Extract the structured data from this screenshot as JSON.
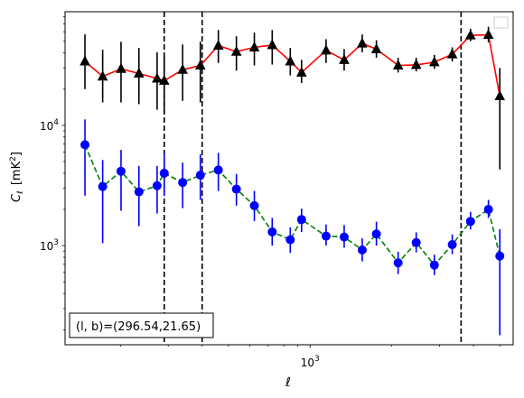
{
  "chart_data": {
    "type": "scatter",
    "xlabel": "ℓ",
    "ylabel_main": "C",
    "ylabel_sub": "ℓ",
    "ylabel_unit_pre": "[mK",
    "ylabel_unit_sup": "2",
    "ylabel_unit_post": "]",
    "xscale": "log",
    "yscale": "log",
    "xlim": [
      125,
      5600
    ],
    "ylim": [
      150,
      88000
    ],
    "xtick_labels": [
      {
        "value": 1000,
        "base": "10",
        "exp": "3"
      }
    ],
    "ytick_labels": [
      {
        "value": 1000,
        "base": "10",
        "exp": "3"
      },
      {
        "value": 10000,
        "base": "10",
        "exp": "4"
      }
    ],
    "grid": false,
    "legend": "top-right (empty)",
    "annotation": "(l, b)=(296.54,21.65)",
    "vlines": [
      290,
      400,
      3600
    ],
    "series": [
      {
        "line_color": "#ff0000",
        "line_style": "solid",
        "marker": "triangle",
        "marker_color": "#000000",
        "err_color": "#000000",
        "x": [
          148,
          172,
          201,
          234,
          273,
          290,
          339,
          394,
          459,
          535,
          623,
          725,
          845,
          930,
          1145,
          1335,
          1556,
          1755,
          2110,
          2460,
          2870,
          3340,
          3900,
          4540,
          5000
        ],
        "y": [
          34000,
          25500,
          29500,
          27000,
          24500,
          23500,
          29000,
          31500,
          46000,
          41000,
          44500,
          46500,
          34000,
          27500,
          42000,
          35000,
          48000,
          43000,
          31500,
          31800,
          33500,
          39000,
          56000,
          56500,
          17500
        ],
        "err_low": [
          14000,
          10000,
          14000,
          12000,
          11000,
          11000,
          13000,
          16000,
          13000,
          12500,
          13000,
          14500,
          8000,
          5000,
          9000,
          6500,
          7500,
          6500,
          4000,
          3700,
          4000,
          5000,
          6000,
          7500,
          13200
        ],
        "err_high": [
          23000,
          17000,
          20000,
          17000,
          16000,
          14500,
          18000,
          18000,
          16000,
          14000,
          14500,
          15500,
          10000,
          7500,
          10000,
          8000,
          9000,
          8000,
          5000,
          4700,
          5000,
          5500,
          7500,
          9500,
          12500
        ]
      },
      {
        "line_color": "#008000",
        "line_style": "dashed",
        "marker": "circle",
        "marker_color": "#0000ff",
        "err_color": "#0000ff",
        "x": [
          148,
          172,
          201,
          234,
          273,
          290,
          339,
          394,
          459,
          535,
          623,
          725,
          845,
          930,
          1145,
          1335,
          1556,
          1755,
          2110,
          2460,
          2870,
          3340,
          3900,
          4540,
          5000
        ],
        "y": [
          6900,
          3100,
          4150,
          2800,
          3150,
          4000,
          3350,
          3850,
          4250,
          2950,
          2150,
          1300,
          1120,
          1650,
          1200,
          1180,
          920,
          1250,
          720,
          1060,
          690,
          1020,
          1590,
          2000,
          820
        ],
        "err_low": [
          4300,
          2050,
          2200,
          1350,
          1300,
          1400,
          1300,
          1450,
          1400,
          800,
          550,
          300,
          250,
          350,
          200,
          220,
          180,
          250,
          140,
          180,
          120,
          170,
          230,
          300,
          640
        ],
        "err_high": [
          4300,
          2050,
          2100,
          1800,
          1450,
          1850,
          1550,
          1900,
          1650,
          1000,
          700,
          400,
          300,
          380,
          300,
          300,
          230,
          330,
          170,
          230,
          150,
          220,
          320,
          400,
          550
        ]
      }
    ]
  }
}
